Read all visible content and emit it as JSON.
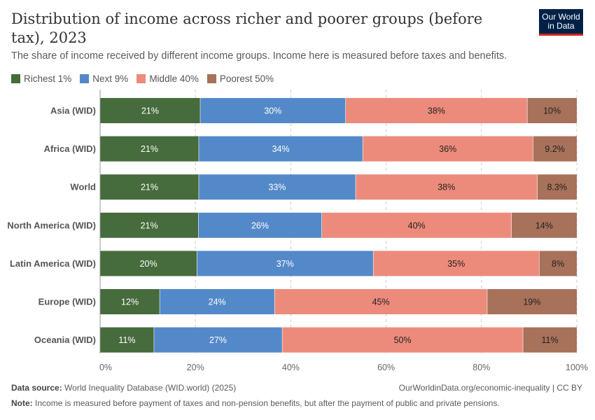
{
  "header": {
    "title": "Distribution of income across richer and poorer groups (before tax), 2023",
    "subtitle": "The share of income received by different income groups. Income here is measured before taxes and benefits.",
    "logo": "Our World in Data"
  },
  "chart_data": {
    "type": "bar",
    "orientation": "horizontal-stacked",
    "categories": [
      "Asia (WID)",
      "Africa (WID)",
      "World",
      "North America (WID)",
      "Latin America (WID)",
      "Europe (WID)",
      "Oceania (WID)"
    ],
    "series": [
      {
        "name": "Richest 1%",
        "color": "#466b3d",
        "values": [
          21.0,
          20.7,
          20.7,
          20.6,
          20.3,
          12.5,
          11.3
        ],
        "labels": [
          "21%",
          "21%",
          "21%",
          "21%",
          "20%",
          "12%",
          "11%"
        ]
      },
      {
        "name": "Next 9%",
        "color": "#5489c9",
        "values": [
          30.5,
          34.4,
          32.9,
          25.9,
          37.0,
          24.1,
          26.9
        ],
        "labels": [
          "30%",
          "34%",
          "33%",
          "26%",
          "37%",
          "24%",
          "27%"
        ]
      },
      {
        "name": "Middle 40%",
        "color": "#ec8b7b",
        "values": [
          38.1,
          35.7,
          38.1,
          39.8,
          34.8,
          44.6,
          50.5
        ],
        "labels": [
          "38%",
          "36%",
          "38%",
          "40%",
          "35%",
          "45%",
          "50%"
        ]
      },
      {
        "name": "Poorest 50%",
        "color": "#a8715a",
        "values": [
          10.4,
          9.2,
          8.3,
          13.7,
          7.9,
          18.8,
          11.3
        ],
        "labels": [
          "10%",
          "9.2%",
          "8.3%",
          "14%",
          "8%",
          "19%",
          "11%"
        ]
      }
    ],
    "xticks": [
      "0%",
      "20%",
      "40%",
      "60%",
      "80%",
      "100%"
    ],
    "xlim": [
      0,
      100
    ],
    "grid": "vertical dashed",
    "legend": "top-left"
  },
  "footer": {
    "source_label": "Data source:",
    "source": "World Inequality Database (WID.world) (2025)",
    "url": "OurWorldinData.org/economic-inequality | CC BY",
    "note_label": "Note:",
    "note": "Income is measured before payment of taxes and non-pension benefits, but after the payment of public and private pensions."
  }
}
